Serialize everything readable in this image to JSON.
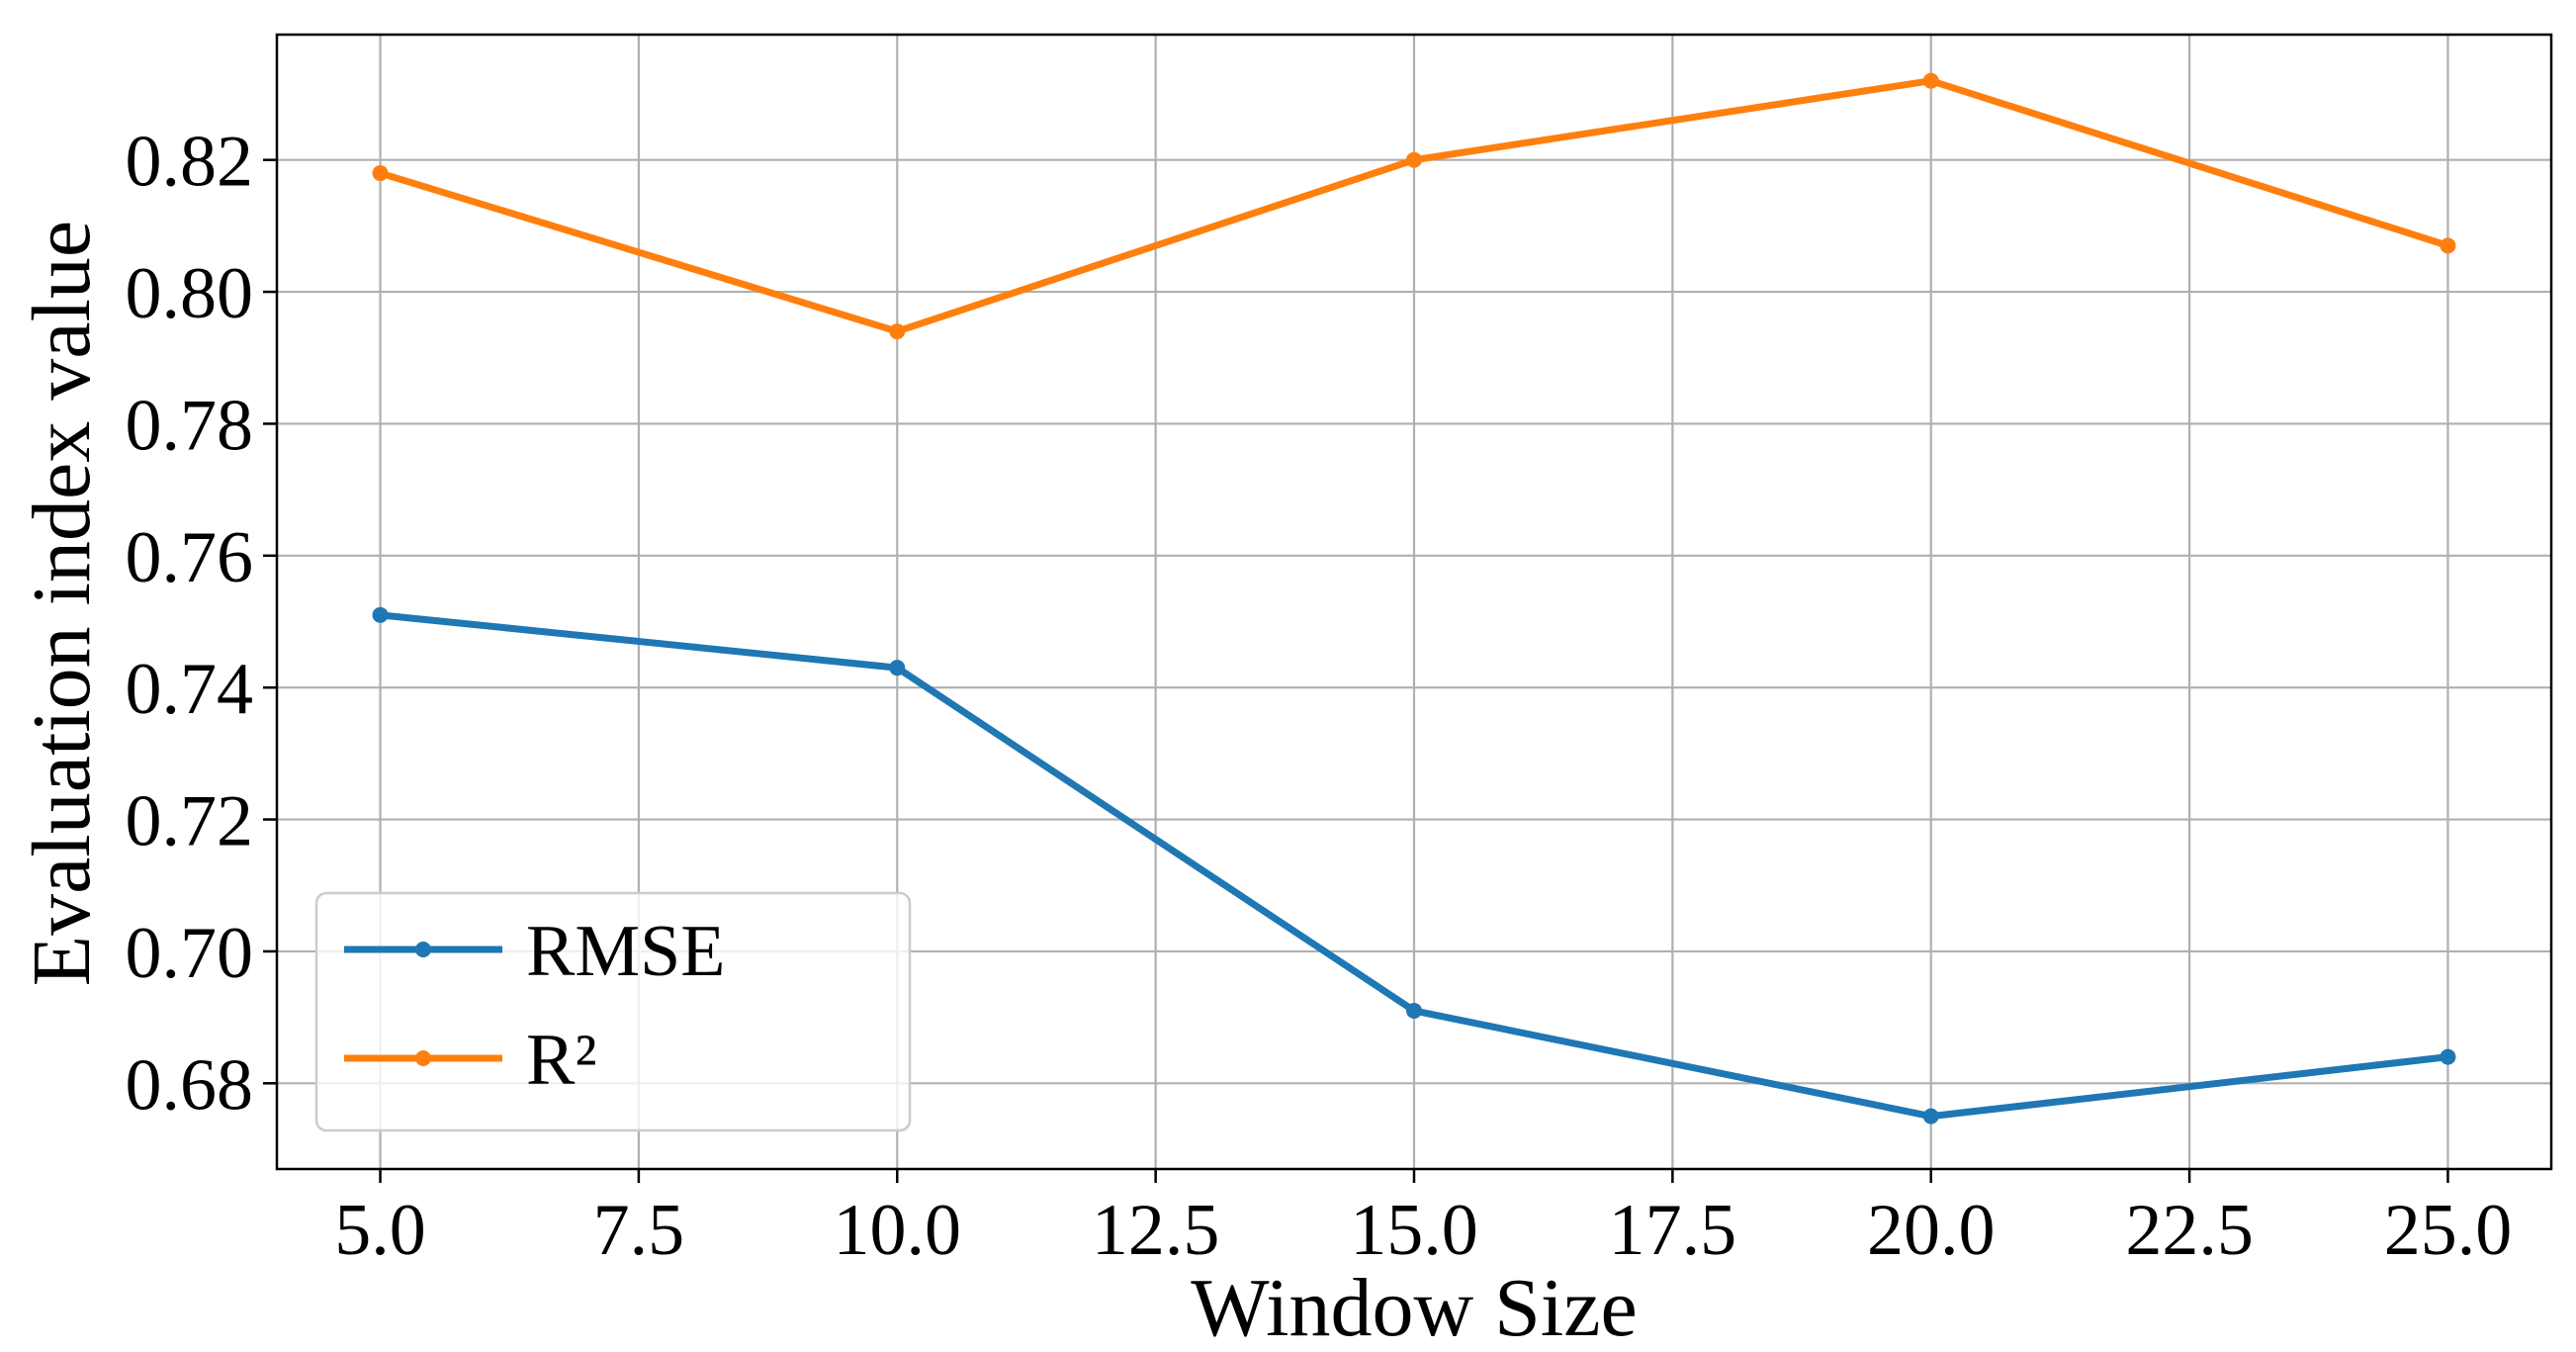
{
  "chart_data": {
    "type": "line",
    "title": "",
    "xlabel": "Window Size",
    "ylabel": "Evaluation index value",
    "xlim": [
      4.0,
      26.0
    ],
    "ylim": [
      0.667,
      0.839
    ],
    "x_ticks": [
      5.0,
      7.5,
      10.0,
      12.5,
      15.0,
      17.5,
      20.0,
      22.5,
      25.0
    ],
    "x_tick_labels": [
      "5.0",
      "7.5",
      "10.0",
      "12.5",
      "15.0",
      "17.5",
      "20.0",
      "22.5",
      "25.0"
    ],
    "y_ticks": [
      0.68,
      0.7,
      0.72,
      0.74,
      0.76,
      0.78,
      0.8,
      0.82
    ],
    "y_tick_labels": [
      "0.68",
      "0.70",
      "0.72",
      "0.74",
      "0.76",
      "0.78",
      "0.80",
      "0.82"
    ],
    "x": [
      5,
      10,
      15,
      20,
      25
    ],
    "series": [
      {
        "name": "RMSE",
        "color": "#1f77b4",
        "values": [
          0.751,
          0.743,
          0.691,
          0.675,
          0.684
        ]
      },
      {
        "name": "R²",
        "color": "#ff7f0e",
        "values": [
          0.818,
          0.794,
          0.82,
          0.832,
          0.807
        ]
      }
    ],
    "grid": true,
    "legend_position": "lower-left",
    "markers": "circle"
  }
}
